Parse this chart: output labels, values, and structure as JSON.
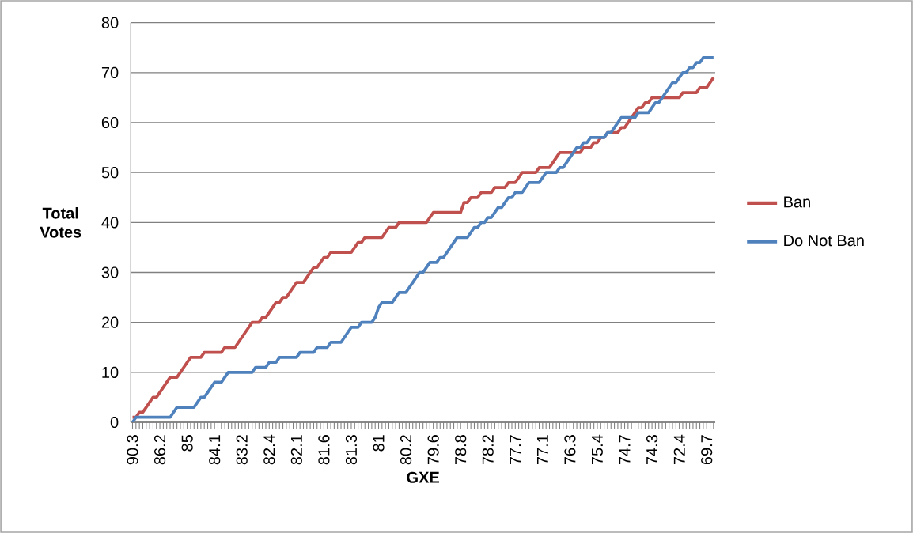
{
  "chart_data": {
    "type": "line",
    "xlabel": "GXE",
    "ylabel": "Total Votes",
    "categories": [
      "90.3",
      null,
      null,
      null,
      null,
      null,
      null,
      null,
      "86.2",
      null,
      null,
      null,
      null,
      null,
      null,
      null,
      "85",
      null,
      null,
      null,
      null,
      null,
      null,
      null,
      "84.1",
      null,
      null,
      null,
      null,
      null,
      null,
      null,
      "83.2",
      null,
      null,
      null,
      null,
      null,
      null,
      null,
      "82.4",
      null,
      null,
      null,
      null,
      null,
      null,
      null,
      "82.1",
      null,
      null,
      null,
      null,
      null,
      null,
      null,
      "81.6",
      null,
      null,
      null,
      null,
      null,
      null,
      null,
      "81.3",
      null,
      null,
      null,
      null,
      null,
      null,
      null,
      "81",
      null,
      null,
      null,
      null,
      null,
      null,
      null,
      "80.2",
      null,
      null,
      null,
      null,
      null,
      null,
      null,
      "79.6",
      null,
      null,
      null,
      null,
      null,
      null,
      null,
      "78.8",
      null,
      null,
      null,
      null,
      null,
      null,
      null,
      "78.2",
      null,
      null,
      null,
      null,
      null,
      null,
      null,
      "77.7",
      null,
      null,
      null,
      null,
      null,
      null,
      null,
      "77.1",
      null,
      null,
      null,
      null,
      null,
      null,
      null,
      "76.3",
      null,
      null,
      null,
      null,
      null,
      null,
      null,
      "75.4",
      null,
      null,
      null,
      null,
      null,
      null,
      null,
      "74.7",
      null,
      null,
      null,
      null,
      null,
      null,
      null,
      "74.3",
      null,
      null,
      null,
      null,
      null,
      null,
      null,
      "72.4",
      null,
      null,
      null,
      null,
      null,
      null,
      null,
      "69.7",
      null,
      null
    ],
    "series": [
      {
        "name": "Ban",
        "color": "#c0504d",
        "values": [
          1,
          1,
          2,
          2,
          3,
          4,
          5,
          5,
          6,
          7,
          8,
          9,
          9,
          9,
          10,
          11,
          12,
          13,
          13,
          13,
          13,
          14,
          14,
          14,
          14,
          14,
          14,
          15,
          15,
          15,
          15,
          16,
          17,
          18,
          19,
          20,
          20,
          20,
          21,
          21,
          22,
          23,
          24,
          24,
          25,
          25,
          26,
          27,
          28,
          28,
          28,
          29,
          30,
          31,
          31,
          32,
          33,
          33,
          34,
          34,
          34,
          34,
          34,
          34,
          34,
          35,
          36,
          36,
          37,
          37,
          37,
          37,
          37,
          37,
          38,
          39,
          39,
          39,
          40,
          40,
          40,
          40,
          40,
          40,
          40,
          40,
          40,
          41,
          42,
          42,
          42,
          42,
          42,
          42,
          42,
          42,
          42,
          44,
          44,
          45,
          45,
          45,
          46,
          46,
          46,
          46,
          47,
          47,
          47,
          47,
          48,
          48,
          48,
          49,
          50,
          50,
          50,
          50,
          50,
          51,
          51,
          51,
          51,
          52,
          53,
          54,
          54,
          54,
          54,
          54,
          54,
          54,
          55,
          55,
          55,
          56,
          56,
          57,
          57,
          58,
          58,
          58,
          58,
          59,
          59,
          60,
          61,
          62,
          63,
          63,
          64,
          64,
          65,
          65,
          65,
          65,
          65,
          65,
          65,
          65,
          65,
          66,
          66,
          66,
          66,
          66,
          67,
          67,
          67,
          68,
          69
        ]
      },
      {
        "name": "Do Not Ban",
        "color": "#4f81bd",
        "values": [
          0,
          1,
          1,
          1,
          1,
          1,
          1,
          1,
          1,
          1,
          1,
          1,
          2,
          3,
          3,
          3,
          3,
          3,
          3,
          4,
          5,
          5,
          6,
          7,
          8,
          8,
          8,
          9,
          10,
          10,
          10,
          10,
          10,
          10,
          10,
          10,
          11,
          11,
          11,
          11,
          12,
          12,
          12,
          13,
          13,
          13,
          13,
          13,
          13,
          14,
          14,
          14,
          14,
          14,
          15,
          15,
          15,
          15,
          16,
          16,
          16,
          16,
          17,
          18,
          19,
          19,
          19,
          20,
          20,
          20,
          20,
          21,
          23,
          24,
          24,
          24,
          24,
          25,
          26,
          26,
          26,
          27,
          28,
          29,
          30,
          30,
          31,
          32,
          32,
          32,
          33,
          33,
          34,
          35,
          36,
          37,
          37,
          37,
          37,
          38,
          39,
          39,
          40,
          40,
          41,
          41,
          42,
          43,
          43,
          44,
          45,
          45,
          46,
          46,
          46,
          47,
          48,
          48,
          48,
          48,
          49,
          50,
          50,
          50,
          50,
          51,
          51,
          52,
          53,
          54,
          55,
          55,
          56,
          56,
          57,
          57,
          57,
          57,
          57,
          58,
          58,
          59,
          60,
          61,
          61,
          61,
          61,
          61,
          62,
          62,
          62,
          62,
          63,
          64,
          64,
          65,
          66,
          67,
          68,
          68,
          69,
          70,
          70,
          71,
          71,
          72,
          72,
          73,
          73,
          73,
          73
        ]
      }
    ],
    "ylim": [
      0,
      80
    ],
    "yticks": [
      0,
      10,
      20,
      30,
      40,
      50,
      60,
      70,
      80
    ],
    "grid": "y",
    "legend": "right",
    "marker": "none",
    "line_style": "solid"
  }
}
